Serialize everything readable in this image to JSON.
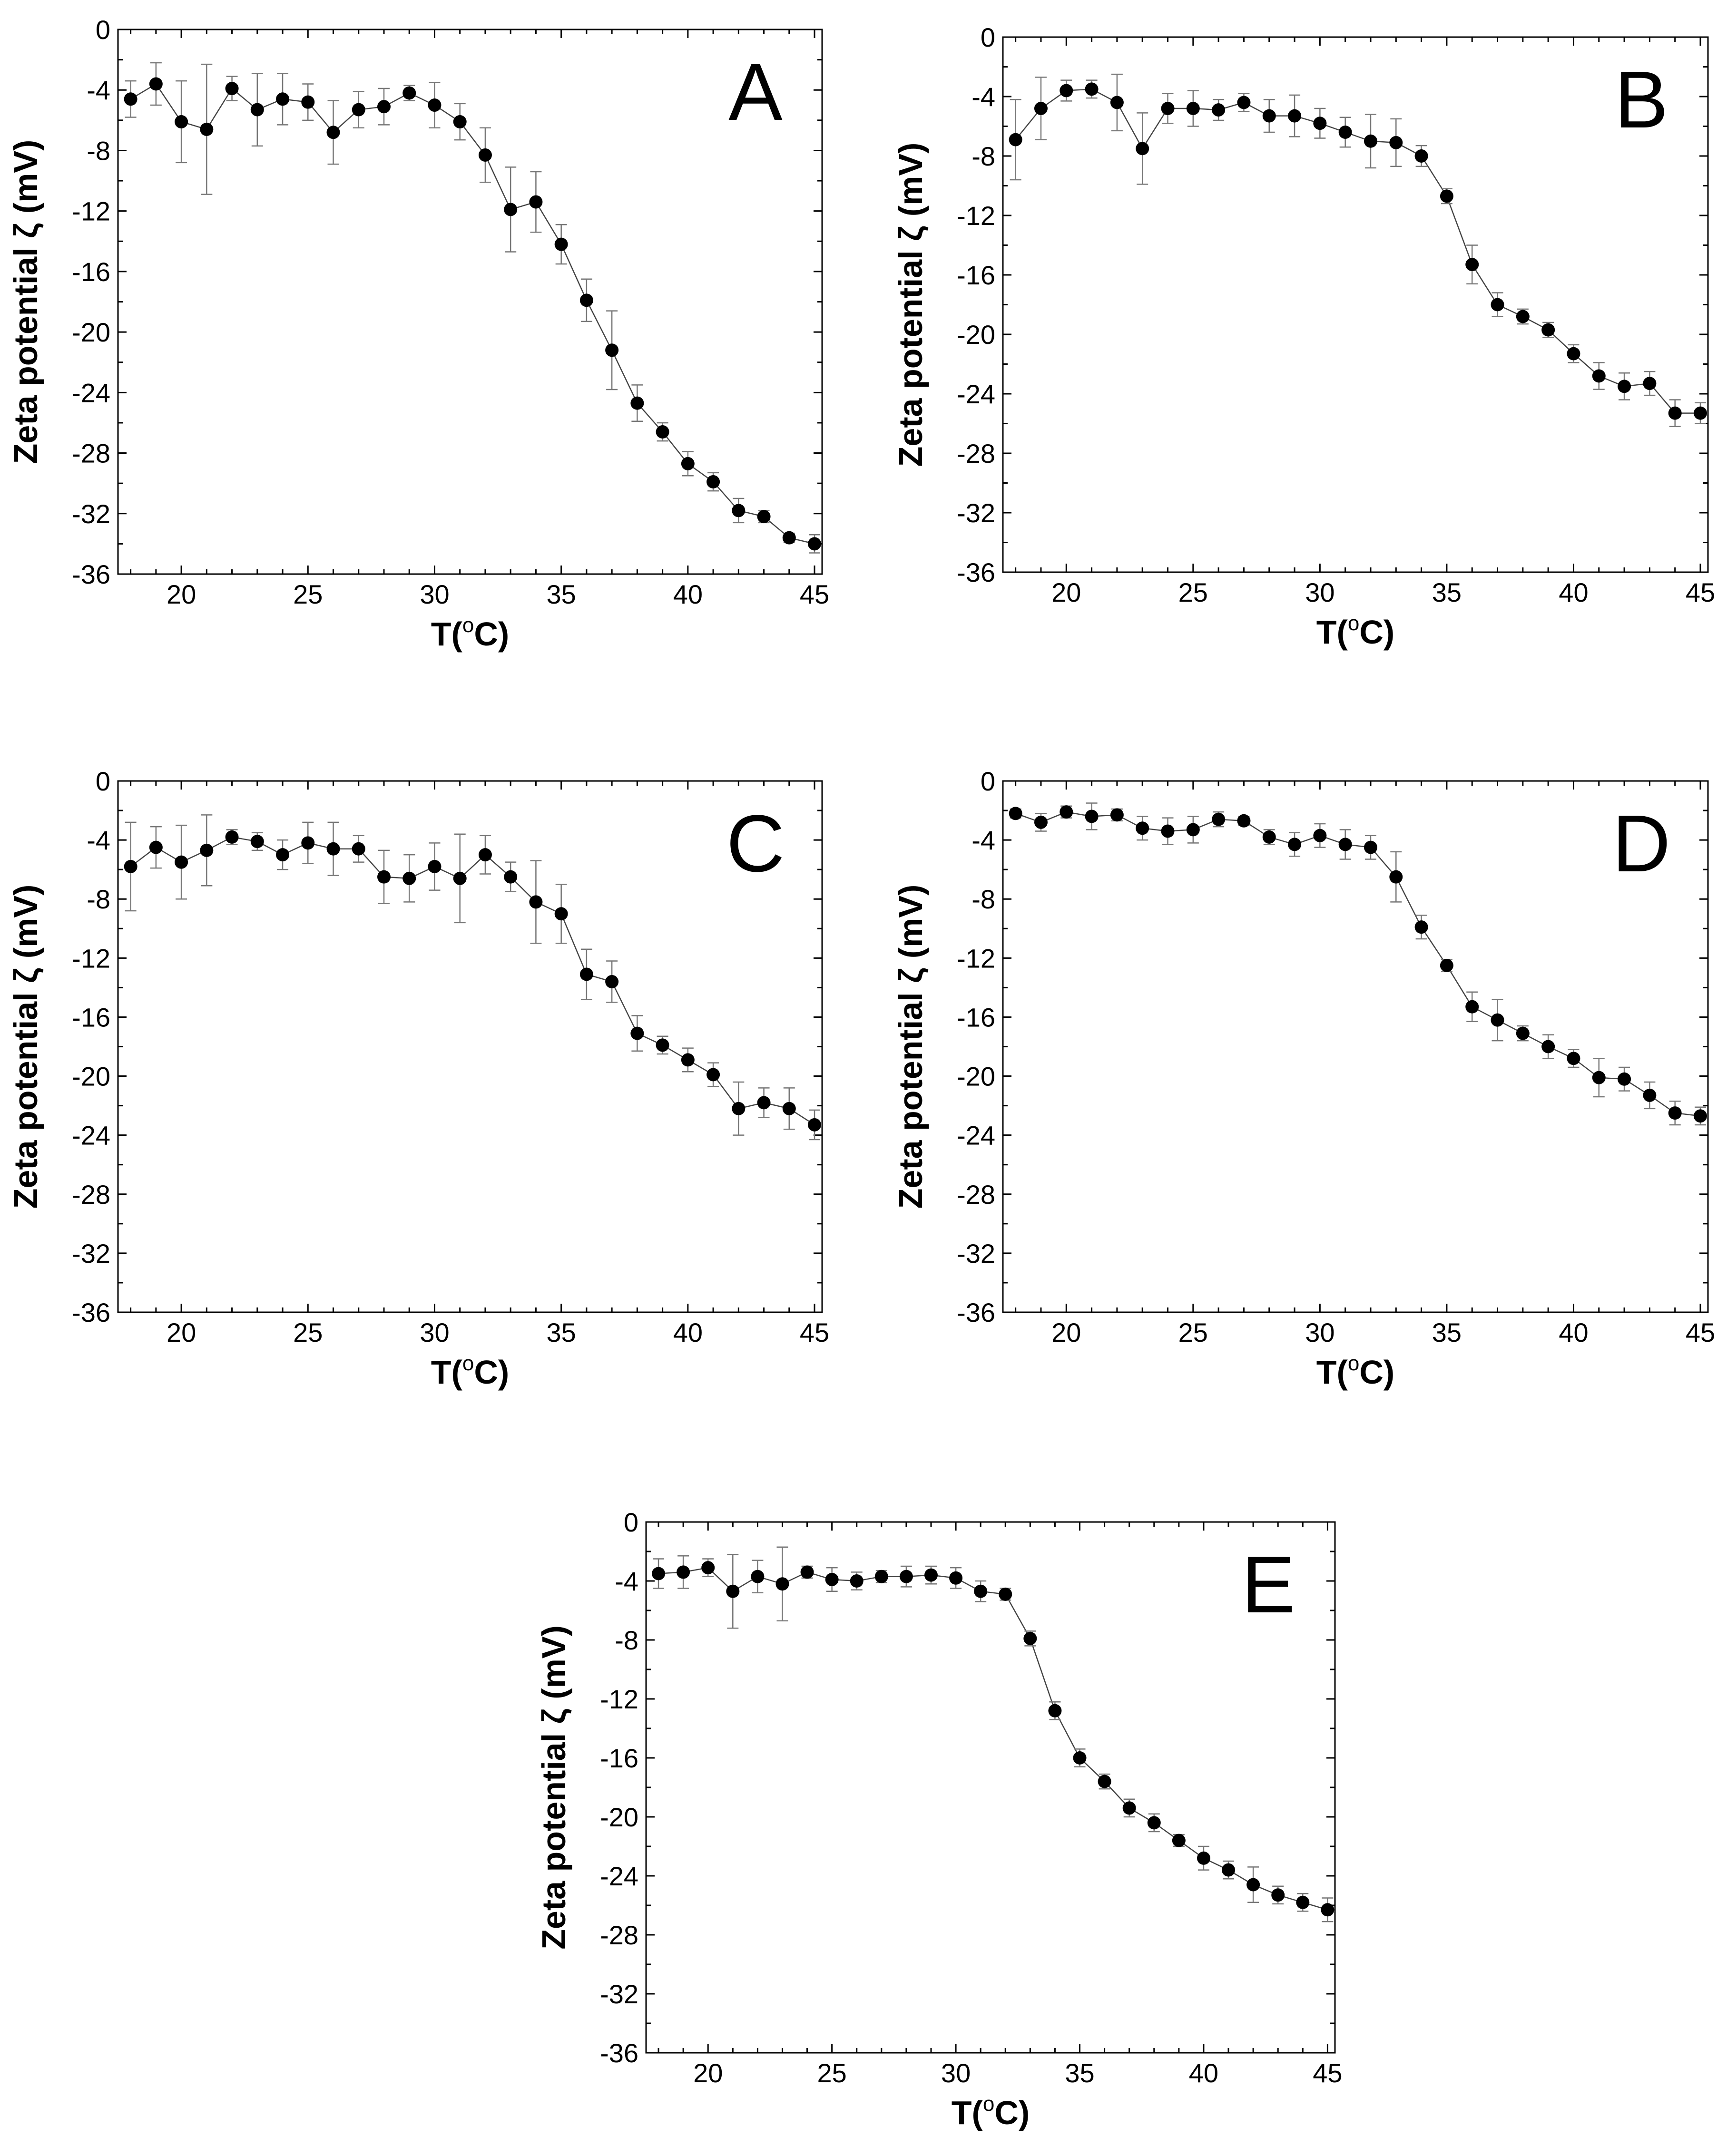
{
  "chart_data": [
    {
      "type": "line",
      "panel": "A",
      "xlabel": "T(oC)",
      "ylabel": "Zeta potential ζ (mV)",
      "xlim": [
        17.5,
        45.3
      ],
      "ylim": [
        -36,
        0
      ],
      "xticks": [
        20,
        25,
        30,
        35,
        40,
        45
      ],
      "yticks": [
        0,
        -4,
        -8,
        -12,
        -16,
        -20,
        -24,
        -28,
        -32,
        -36
      ],
      "x": [
        18,
        19,
        20,
        21,
        22,
        23,
        24,
        25,
        26,
        27,
        28,
        29,
        30,
        31,
        32,
        33,
        34,
        35,
        36,
        37,
        38,
        39,
        40,
        41,
        42,
        43,
        44,
        45
      ],
      "y": [
        -4.6,
        -3.6,
        -6.1,
        -6.6,
        -3.9,
        -5.3,
        -4.6,
        -4.8,
        -6.8,
        -5.3,
        -5.1,
        -4.2,
        -5.0,
        -6.1,
        -8.3,
        -11.9,
        -11.4,
        -14.2,
        -17.9,
        -21.2,
        -24.7,
        -26.6,
        -28.7,
        -29.9,
        -31.8,
        -32.2,
        -33.6,
        -34.0
      ],
      "err": [
        1.2,
        1.4,
        2.7,
        4.3,
        0.8,
        2.4,
        1.7,
        1.2,
        2.1,
        1.2,
        1.2,
        0.5,
        1.5,
        1.2,
        1.8,
        2.8,
        2.0,
        1.3,
        1.4,
        2.6,
        1.2,
        0.6,
        0.8,
        0.6,
        0.8,
        0.4,
        0.3,
        0.6
      ]
    },
    {
      "type": "line",
      "panel": "B",
      "xlabel": "T(oC)",
      "ylabel": "Zeta potential ζ (mV)",
      "xlim": [
        17.5,
        45.3
      ],
      "ylim": [
        -36,
        0
      ],
      "xticks": [
        20,
        25,
        30,
        35,
        40,
        45
      ],
      "yticks": [
        0,
        -4,
        -8,
        -12,
        -16,
        -20,
        -24,
        -28,
        -32,
        -36
      ],
      "x": [
        18,
        19,
        20,
        21,
        22,
        23,
        24,
        25,
        26,
        27,
        28,
        29,
        30,
        31,
        32,
        33,
        34,
        35,
        36,
        37,
        38,
        39,
        40,
        41,
        42,
        43,
        44,
        45
      ],
      "y": [
        -6.9,
        -4.8,
        -3.6,
        -3.5,
        -4.4,
        -7.5,
        -4.8,
        -4.8,
        -4.9,
        -4.4,
        -5.3,
        -5.3,
        -5.8,
        -6.4,
        -7.0,
        -7.1,
        -8.0,
        -10.7,
        -15.3,
        -18.0,
        -18.8,
        -19.7,
        -21.3,
        -22.8,
        -23.5,
        -23.3,
        -25.3,
        -25.3
      ],
      "err": [
        2.7,
        2.1,
        0.7,
        0.6,
        1.9,
        2.4,
        1.0,
        1.2,
        0.7,
        0.6,
        1.1,
        1.4,
        1.0,
        1.0,
        1.8,
        1.6,
        0.7,
        0.5,
        1.3,
        0.8,
        0.5,
        0.5,
        0.6,
        0.9,
        0.9,
        0.8,
        0.9,
        0.7
      ]
    },
    {
      "type": "line",
      "panel": "C",
      "xlabel": "T(oC)",
      "ylabel": "Zeta potential ζ (mV)",
      "xlim": [
        17.5,
        45.3
      ],
      "ylim": [
        -36,
        0
      ],
      "xticks": [
        20,
        25,
        30,
        35,
        40,
        45
      ],
      "yticks": [
        0,
        -4,
        -8,
        -12,
        -16,
        -20,
        -24,
        -28,
        -32,
        -36
      ],
      "x": [
        18,
        19,
        20,
        21,
        22,
        23,
        24,
        25,
        26,
        27,
        28,
        29,
        30,
        31,
        32,
        33,
        34,
        35,
        36,
        37,
        38,
        39,
        40,
        41,
        42,
        43,
        44,
        45
      ],
      "y": [
        -5.8,
        -4.5,
        -5.5,
        -4.7,
        -3.8,
        -4.1,
        -5.0,
        -4.2,
        -4.6,
        -4.6,
        -6.5,
        -6.6,
        -5.8,
        -6.6,
        -5.0,
        -6.5,
        -8.2,
        -9.0,
        -13.1,
        -13.6,
        -17.1,
        -17.9,
        -18.9,
        -19.9,
        -22.2,
        -21.8,
        -22.2,
        -23.3
      ],
      "err": [
        3.0,
        1.4,
        2.5,
        2.4,
        0.5,
        0.6,
        1.0,
        1.4,
        1.8,
        0.9,
        1.8,
        1.6,
        1.6,
        3.0,
        1.3,
        1.0,
        2.8,
        2.0,
        1.7,
        1.4,
        1.2,
        0.6,
        0.8,
        0.8,
        1.8,
        1.0,
        1.4,
        1.0
      ]
    },
    {
      "type": "line",
      "panel": "D",
      "xlabel": "T(oC)",
      "ylabel": "Zeta potential ζ (mV)",
      "xlim": [
        17.5,
        45.3
      ],
      "ylim": [
        -36,
        0
      ],
      "xticks": [
        20,
        25,
        30,
        35,
        40,
        45
      ],
      "yticks": [
        0,
        -4,
        -8,
        -12,
        -16,
        -20,
        -24,
        -28,
        -32,
        -36
      ],
      "x": [
        18,
        19,
        20,
        21,
        22,
        23,
        24,
        25,
        26,
        27,
        28,
        29,
        30,
        31,
        32,
        33,
        34,
        35,
        36,
        37,
        38,
        39,
        40,
        41,
        42,
        43,
        44,
        45
      ],
      "y": [
        -2.2,
        -2.8,
        -2.1,
        -2.4,
        -2.3,
        -3.2,
        -3.4,
        -3.3,
        -2.6,
        -2.7,
        -3.8,
        -4.3,
        -3.7,
        -4.3,
        -4.5,
        -6.5,
        -9.9,
        -12.5,
        -15.3,
        -16.2,
        -17.1,
        -18.0,
        -18.8,
        -20.1,
        -20.2,
        -21.3,
        -22.5,
        -22.7
      ],
      "err": [
        0.3,
        0.6,
        0.4,
        0.9,
        0.4,
        0.8,
        0.9,
        0.9,
        0.5,
        0.3,
        0.5,
        0.8,
        0.8,
        1.0,
        0.8,
        1.7,
        0.8,
        0.4,
        1.0,
        1.4,
        0.5,
        0.8,
        0.6,
        1.3,
        0.8,
        0.9,
        0.8,
        0.6
      ]
    },
    {
      "type": "line",
      "panel": "E",
      "xlabel": "T(oC)",
      "ylabel": "Zeta potential ζ (mV)",
      "xlim": [
        17.5,
        45.3
      ],
      "ylim": [
        -36,
        0
      ],
      "xticks": [
        20,
        25,
        30,
        35,
        40,
        45
      ],
      "yticks": [
        0,
        -4,
        -8,
        -12,
        -16,
        -20,
        -24,
        -28,
        -32,
        -36
      ],
      "x": [
        18,
        19,
        20,
        21,
        22,
        23,
        24,
        25,
        26,
        27,
        28,
        29,
        30,
        31,
        32,
        33,
        34,
        35,
        36,
        37,
        38,
        39,
        40,
        41,
        42,
        43,
        44,
        45
      ],
      "y": [
        -3.5,
        -3.4,
        -3.1,
        -4.7,
        -3.7,
        -4.2,
        -3.4,
        -3.9,
        -4.0,
        -3.7,
        -3.7,
        -3.6,
        -3.8,
        -4.7,
        -4.9,
        -7.9,
        -12.8,
        -16.0,
        -17.6,
        -19.4,
        -20.4,
        -21.6,
        -22.8,
        -23.6,
        -24.6,
        -25.3,
        -25.8,
        -26.3
      ],
      "err": [
        1.0,
        1.1,
        0.6,
        2.5,
        1.1,
        2.5,
        0.4,
        0.8,
        0.6,
        0.4,
        0.7,
        0.6,
        0.7,
        0.7,
        0.4,
        0.5,
        0.6,
        0.6,
        0.5,
        0.6,
        0.6,
        0.4,
        0.8,
        0.6,
        1.2,
        0.6,
        0.6,
        0.8
      ]
    }
  ]
}
